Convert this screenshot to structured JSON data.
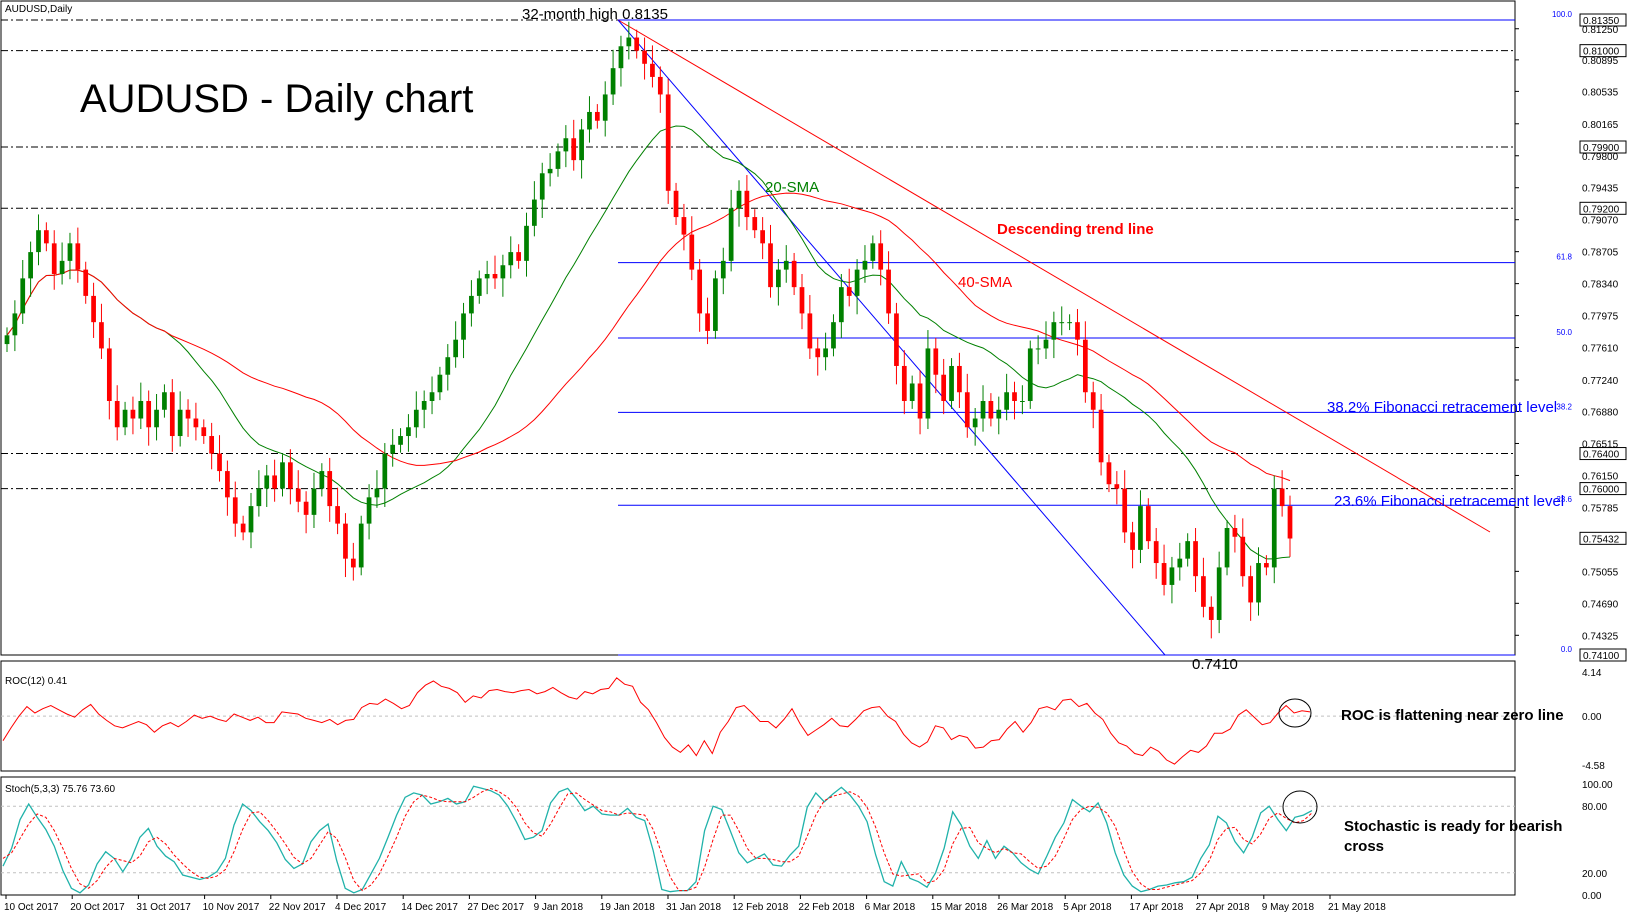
{
  "chart_data": {
    "type": "candlestick",
    "symbol_label": "AUDUSD,Daily",
    "title": "AUDUSD - Daily chart",
    "annotations": {
      "high_label": "32-month high 0.8135",
      "low_label": "0.7410",
      "sma20_label": "20-SMA",
      "sma40_label": "40-SMA",
      "trend_label": "Descending trend line",
      "fib382_label": "38.2% Fibonacci retracement level",
      "fib236_label": "23.6% Fibonacci retracement level",
      "roc_note": "ROC is flattening near zero line",
      "stoch_note_1": "Stochastic is ready for bearish",
      "stoch_note_2": "cross"
    },
    "ylim": [
      0.741,
      0.8135
    ],
    "price_ticks": [
      "0.81250",
      "0.80895",
      "0.80535",
      "0.80165",
      "0.79800",
      "0.79435",
      "0.79070",
      "0.78705",
      "0.78340",
      "0.77975",
      "0.77610",
      "0.77240",
      "0.76880",
      "0.76515",
      "0.76150",
      "0.75785",
      "0.75055",
      "0.74690",
      "0.74325"
    ],
    "price_ticks_values": [
      0.8125,
      0.80895,
      0.80535,
      0.80165,
      0.798,
      0.79435,
      0.7907,
      0.78705,
      0.7834,
      0.77975,
      0.7761,
      0.7724,
      0.7688,
      0.76515,
      0.7615,
      0.75785,
      0.75055,
      0.7469,
      0.74325
    ],
    "horizontal_levels": [
      {
        "value": 0.8135,
        "label": "0.81350"
      },
      {
        "value": 0.81,
        "label": "0.81000"
      },
      {
        "value": 0.799,
        "label": "0.79900"
      },
      {
        "value": 0.792,
        "label": "0.79200"
      },
      {
        "value": 0.764,
        "label": "0.76400"
      },
      {
        "value": 0.76,
        "label": "0.76000"
      },
      {
        "value": 0.741,
        "label": "0.74100"
      }
    ],
    "last_price": {
      "value": 0.75432,
      "label": "0.75432"
    },
    "fibonacci": [
      {
        "ratio": "100.0",
        "value": 0.8135
      },
      {
        "ratio": "61.8",
        "value": 0.7858
      },
      {
        "ratio": "50.0",
        "value": 0.7772
      },
      {
        "ratio": "38.2",
        "value": 0.7687
      },
      {
        "ratio": "23.6",
        "value": 0.7581
      },
      {
        "ratio": "0.0",
        "value": 0.741
      }
    ],
    "date_labels": [
      "10 Oct 2017",
      "20 Oct 2017",
      "31 Oct 2017",
      "10 Nov 2017",
      "22 Nov 2017",
      "4 Dec 2017",
      "14 Dec 2017",
      "27 Dec 2017",
      "9 Jan 2018",
      "19 Jan 2018",
      "31 Jan 2018",
      "12 Feb 2018",
      "22 Feb 2018",
      "6 Mar 2018",
      "15 Mar 2018",
      "26 Mar 2018",
      "5 Apr 2018",
      "17 Apr 2018",
      "27 Apr 2018",
      "9 May 2018",
      "21 May 2018"
    ],
    "closes": [
      0.7775,
      0.78,
      0.784,
      0.787,
      0.7895,
      0.788,
      0.7845,
      0.786,
      0.788,
      0.785,
      0.782,
      0.779,
      0.776,
      0.77,
      0.767,
      0.769,
      0.768,
      0.77,
      0.767,
      0.769,
      0.771,
      0.766,
      0.769,
      0.768,
      0.767,
      0.766,
      0.764,
      0.762,
      0.759,
      0.756,
      0.755,
      0.758,
      0.76,
      0.7615,
      0.76,
      0.763,
      0.76,
      0.7585,
      0.757,
      0.76,
      0.762,
      0.758,
      0.756,
      0.752,
      0.751,
      0.756,
      0.759,
      0.76,
      0.764,
      0.765,
      0.766,
      0.767,
      0.769,
      0.77,
      0.771,
      0.773,
      0.775,
      0.777,
      0.78,
      0.782,
      0.784,
      0.7845,
      0.784,
      0.7855,
      0.787,
      0.786,
      0.79,
      0.793,
      0.796,
      0.7965,
      0.7985,
      0.8,
      0.7975,
      0.801,
      0.803,
      0.802,
      0.805,
      0.808,
      0.8105,
      0.8115,
      0.81,
      0.8085,
      0.807,
      0.805,
      0.794,
      0.791,
      0.789,
      0.785,
      0.78,
      0.778,
      0.784,
      0.786,
      0.792,
      0.794,
      0.791,
      0.7895,
      0.788,
      0.783,
      0.785,
      0.786,
      0.783,
      0.78,
      0.776,
      0.775,
      0.776,
      0.779,
      0.783,
      0.782,
      0.785,
      0.786,
      0.788,
      0.785,
      0.78,
      0.774,
      0.77,
      0.772,
      0.768,
      0.776,
      0.773,
      0.77,
      0.774,
      0.771,
      0.767,
      0.768,
      0.77,
      0.768,
      0.769,
      0.771,
      0.77,
      0.77,
      0.776,
      0.776,
      0.777,
      0.779,
      0.779,
      0.779,
      0.777,
      0.771,
      0.769,
      0.763,
      0.7605,
      0.76,
      0.755,
      0.753,
      0.758,
      0.754,
      0.7515,
      0.749,
      0.751,
      0.752,
      0.754,
      0.75,
      0.7465,
      0.745,
      0.751,
      0.7555,
      0.7545,
      0.75,
      0.747,
      0.7515,
      0.751,
      0.76,
      0.758,
      0.7543
    ],
    "roc": {
      "label": "ROC(12) 0.41",
      "ticks": [
        "4.14",
        "0.00",
        "-4.58"
      ],
      "tick_values": [
        4.14,
        0,
        -4.58
      ],
      "values": [
        -2.3,
        -1.1,
        0.0,
        0.9,
        0.3,
        0.7,
        1.0,
        0.6,
        0.2,
        -0.1,
        0.6,
        1.1,
        0.2,
        -0.4,
        -0.9,
        -1.1,
        -0.8,
        -0.5,
        -0.8,
        -1.5,
        -0.9,
        -0.6,
        -1.0,
        -0.5,
        0.1,
        -0.2,
        0.0,
        -0.3,
        -0.5,
        0.2,
        -0.1,
        -0.4,
        -0.1,
        -0.6,
        -0.6,
        0.4,
        0.3,
        0.2,
        -0.2,
        -0.4,
        -0.6,
        -0.3,
        -0.8,
        -0.4,
        -0.3,
        0.8,
        1.2,
        1.1,
        1.6,
        1.2,
        0.7,
        1.0,
        2.2,
        2.9,
        3.3,
        2.8,
        2.6,
        2.2,
        1.3,
        1.9,
        1.7,
        2.4,
        2.5,
        2.3,
        2.2,
        2.4,
        2.5,
        2.1,
        2.3,
        2.7,
        2.2,
        1.8,
        1.6,
        2.3,
        2.1,
        2.5,
        2.6,
        3.6,
        3.0,
        2.8,
        1.3,
        0.6,
        -0.6,
        -2.0,
        -2.9,
        -3.4,
        -2.7,
        -3.7,
        -2.3,
        -3.5,
        -1.5,
        -0.5,
        0.8,
        1.0,
        0.3,
        -0.5,
        -0.5,
        -1.1,
        -0.3,
        0.7,
        -0.7,
        -1.8,
        -1.3,
        -0.8,
        -0.2,
        -0.9,
        -1.0,
        -0.3,
        0.5,
        0.8,
        0.9,
        0.0,
        -0.5,
        -1.7,
        -2.5,
        -2.9,
        -2.4,
        -0.9,
        -1.1,
        -2.2,
        -1.8,
        -2.0,
        -3.0,
        -2.9,
        -2.3,
        -2.2,
        -1.2,
        -0.5,
        -1.5,
        -0.6,
        0.7,
        0.9,
        0.6,
        1.5,
        1.6,
        0.9,
        1.2,
        0.3,
        -0.3,
        -1.6,
        -2.5,
        -2.8,
        -3.5,
        -3.7,
        -2.9,
        -3.3,
        -4.1,
        -4.5,
        -3.8,
        -3.2,
        -3.4,
        -2.8,
        -1.6,
        -1.6,
        -1.2,
        0.1,
        0.6,
        -0.1,
        -0.8,
        -0.6,
        0.3,
        1.0,
        0.3,
        0.5,
        0.4
      ]
    },
    "stoch": {
      "label": "Stoch(5,3,3) 75.76 73.60",
      "ticks": [
        "100.00",
        "80.00",
        "20.00",
        "0.00"
      ],
      "tick_values": [
        100,
        80,
        20,
        0
      ],
      "k": [
        26,
        42,
        68,
        82,
        70,
        59,
        44,
        22,
        6,
        2,
        9,
        28,
        39,
        33,
        21,
        33,
        52,
        60,
        44,
        35,
        30,
        18,
        16,
        14,
        16,
        21,
        33,
        63,
        82,
        76,
        66,
        58,
        47,
        32,
        24,
        28,
        48,
        58,
        64,
        31,
        6,
        2,
        5,
        19,
        33,
        52,
        72,
        88,
        92,
        90,
        82,
        84,
        87,
        82,
        84,
        98,
        96,
        94,
        90,
        80,
        66,
        50,
        52,
        58,
        83,
        93,
        96,
        87,
        76,
        80,
        73,
        72,
        72,
        78,
        70,
        67,
        40,
        5,
        3,
        4,
        4,
        12,
        58,
        80,
        77,
        58,
        38,
        29,
        33,
        37,
        27,
        26,
        36,
        44,
        79,
        92,
        84,
        91,
        97,
        90,
        80,
        66,
        36,
        12,
        8,
        30,
        15,
        12,
        7,
        20,
        42,
        75,
        63,
        44,
        33,
        49,
        33,
        44,
        38,
        29,
        23,
        19,
        35,
        52,
        65,
        86,
        80,
        75,
        83,
        65,
        38,
        18,
        8,
        3,
        5,
        8,
        9,
        11,
        12,
        16,
        33,
        45,
        71,
        65,
        48,
        38,
        52,
        74,
        80,
        68,
        58,
        70,
        72,
        76
      ],
      "d": [
        33,
        38,
        51,
        64,
        73,
        70,
        58,
        42,
        24,
        10,
        6,
        13,
        25,
        33,
        31,
        29,
        35,
        48,
        52,
        46,
        36,
        28,
        21,
        16,
        15,
        17,
        23,
        39,
        59,
        74,
        75,
        67,
        57,
        46,
        34,
        28,
        33,
        45,
        57,
        51,
        34,
        13,
        4,
        9,
        19,
        35,
        52,
        71,
        84,
        90,
        88,
        85,
        84,
        84,
        84,
        88,
        93,
        96,
        93,
        88,
        79,
        65,
        56,
        53,
        64,
        78,
        91,
        92,
        86,
        81,
        76,
        75,
        72,
        74,
        73,
        72,
        59,
        37,
        16,
        4,
        4,
        7,
        25,
        50,
        72,
        72,
        58,
        42,
        33,
        33,
        32,
        30,
        30,
        35,
        53,
        72,
        85,
        89,
        91,
        93,
        89,
        79,
        61,
        38,
        19,
        17,
        18,
        19,
        11,
        13,
        23,
        46,
        60,
        61,
        47,
        42,
        38,
        42,
        38,
        37,
        30,
        24,
        26,
        35,
        51,
        68,
        77,
        80,
        79,
        74,
        62,
        40,
        21,
        10,
        5,
        5,
        7,
        9,
        11,
        13,
        20,
        31,
        50,
        60,
        61,
        50,
        46,
        55,
        69,
        74,
        69,
        65,
        67,
        74
      ]
    }
  }
}
